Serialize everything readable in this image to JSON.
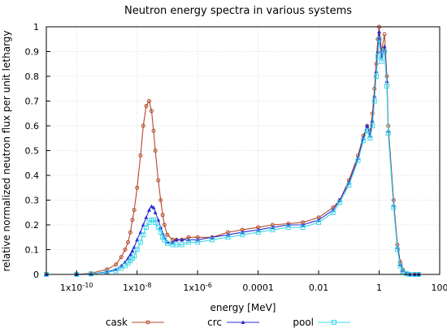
{
  "chart_data": {
    "type": "line",
    "title": "Neutron energy spectra in various systems",
    "xlabel": "energy [MeV]",
    "ylabel": "relative normalized neutron flux per unit lethargy",
    "xscale": "log",
    "xlim": [
      1e-11,
      100
    ],
    "ylim": [
      0,
      1
    ],
    "grid": true,
    "legend_position": "bottom-center",
    "x_ticks": [
      {
        "value": 1e-10,
        "label": "1x10-10"
      },
      {
        "value": 1e-08,
        "label": "1x10-8"
      },
      {
        "value": 1e-06,
        "label": "1x10-6"
      },
      {
        "value": 0.0001,
        "label": "0.0001"
      },
      {
        "value": 0.01,
        "label": "0.01"
      },
      {
        "value": 1,
        "label": "1"
      },
      {
        "value": 100,
        "label": "100"
      }
    ],
    "y_ticks": [
      {
        "value": 0,
        "label": "0"
      },
      {
        "value": 0.1,
        "label": "0.1"
      },
      {
        "value": 0.2,
        "label": "0.2"
      },
      {
        "value": 0.3,
        "label": "0.3"
      },
      {
        "value": 0.4,
        "label": "0.4"
      },
      {
        "value": 0.5,
        "label": "0.5"
      },
      {
        "value": 0.6,
        "label": "0.6"
      },
      {
        "value": 0.7,
        "label": "0.7"
      },
      {
        "value": 0.8,
        "label": "0.8"
      },
      {
        "value": 0.9,
        "label": "0.9"
      },
      {
        "value": 1,
        "label": "1"
      }
    ],
    "series": [
      {
        "name": "cask",
        "color": "#b5482a",
        "marker": "circle",
        "x": [
          1e-11,
          1e-10,
          3e-10,
          1e-09,
          2e-09,
          3e-09,
          4e-09,
          5e-09,
          6e-09,
          7e-09,
          8e-09,
          1e-08,
          1.3e-08,
          1.6e-08,
          2e-08,
          2.5e-08,
          3e-08,
          3.5e-08,
          4e-08,
          5e-08,
          6e-08,
          7e-08,
          8e-08,
          1e-07,
          1.5e-07,
          2e-07,
          3e-07,
          5e-07,
          1e-06,
          3e-06,
          1e-05,
          3e-05,
          0.0001,
          0.0003,
          0.001,
          0.003,
          0.01,
          0.03,
          0.05,
          0.1,
          0.2,
          0.3,
          0.4,
          0.5,
          0.6,
          0.7,
          0.8,
          0.9,
          1.0,
          1.2,
          1.5,
          1.8,
          2.0,
          3.0,
          4.0,
          5.0,
          6.0,
          8.0,
          10,
          15,
          20
        ],
        "y": [
          0,
          0,
          0.005,
          0.02,
          0.04,
          0.07,
          0.1,
          0.13,
          0.17,
          0.22,
          0.26,
          0.35,
          0.48,
          0.6,
          0.68,
          0.7,
          0.66,
          0.58,
          0.5,
          0.38,
          0.3,
          0.24,
          0.2,
          0.16,
          0.14,
          0.14,
          0.14,
          0.15,
          0.15,
          0.15,
          0.17,
          0.18,
          0.19,
          0.2,
          0.205,
          0.21,
          0.23,
          0.27,
          0.3,
          0.38,
          0.48,
          0.56,
          0.6,
          0.58,
          0.65,
          0.75,
          0.85,
          0.95,
          1.0,
          0.9,
          0.97,
          0.8,
          0.6,
          0.3,
          0.12,
          0.05,
          0.02,
          0.005,
          0,
          0,
          0
        ]
      },
      {
        "name": "crc",
        "color": "#2a2ad4",
        "marker": "triangle",
        "x": [
          1e-11,
          1e-10,
          3e-10,
          1e-09,
          2e-09,
          3e-09,
          4e-09,
          5e-09,
          6e-09,
          7e-09,
          8e-09,
          1e-08,
          1.3e-08,
          1.6e-08,
          2e-08,
          2.5e-08,
          3e-08,
          3.5e-08,
          4e-08,
          5e-08,
          6e-08,
          7e-08,
          8e-08,
          1e-07,
          1.5e-07,
          2e-07,
          3e-07,
          5e-07,
          1e-06,
          3e-06,
          1e-05,
          3e-05,
          0.0001,
          0.0003,
          0.001,
          0.003,
          0.01,
          0.03,
          0.05,
          0.1,
          0.2,
          0.3,
          0.4,
          0.5,
          0.6,
          0.7,
          0.8,
          0.9,
          1.0,
          1.2,
          1.5,
          1.8,
          2.0,
          3.0,
          4.0,
          5.0,
          6.0,
          8.0,
          10,
          15,
          20
        ],
        "y": [
          0,
          0,
          0.002,
          0.01,
          0.02,
          0.035,
          0.05,
          0.065,
          0.08,
          0.095,
          0.11,
          0.14,
          0.17,
          0.2,
          0.23,
          0.26,
          0.275,
          0.27,
          0.25,
          0.22,
          0.19,
          0.165,
          0.15,
          0.13,
          0.13,
          0.14,
          0.14,
          0.14,
          0.14,
          0.15,
          0.16,
          0.17,
          0.18,
          0.19,
          0.2,
          0.2,
          0.22,
          0.26,
          0.3,
          0.37,
          0.47,
          0.55,
          0.6,
          0.56,
          0.62,
          0.72,
          0.82,
          0.9,
          0.98,
          0.88,
          0.92,
          0.78,
          0.58,
          0.28,
          0.11,
          0.04,
          0.015,
          0.004,
          0,
          0,
          0
        ]
      },
      {
        "name": "pool",
        "color": "#3fd7e8",
        "marker": "square",
        "x": [
          1e-11,
          1e-10,
          3e-10,
          1e-09,
          2e-09,
          3e-09,
          4e-09,
          5e-09,
          6e-09,
          7e-09,
          8e-09,
          1e-08,
          1.3e-08,
          1.6e-08,
          2e-08,
          2.5e-08,
          3e-08,
          3.5e-08,
          4e-08,
          5e-08,
          6e-08,
          7e-08,
          8e-08,
          1e-07,
          1.5e-07,
          2e-07,
          3e-07,
          5e-07,
          1e-06,
          3e-06,
          1e-05,
          3e-05,
          0.0001,
          0.0003,
          0.001,
          0.003,
          0.01,
          0.03,
          0.05,
          0.1,
          0.2,
          0.3,
          0.4,
          0.5,
          0.6,
          0.7,
          0.8,
          0.9,
          1.0,
          1.2,
          1.5,
          1.8,
          2.0,
          3.0,
          4.0,
          5.0,
          6.0,
          8.0,
          10,
          15,
          20
        ],
        "y": [
          0,
          0,
          0.002,
          0.008,
          0.015,
          0.025,
          0.035,
          0.045,
          0.055,
          0.065,
          0.075,
          0.1,
          0.13,
          0.16,
          0.19,
          0.21,
          0.22,
          0.22,
          0.21,
          0.19,
          0.17,
          0.15,
          0.14,
          0.125,
          0.12,
          0.12,
          0.12,
          0.13,
          0.13,
          0.14,
          0.15,
          0.16,
          0.17,
          0.18,
          0.19,
          0.19,
          0.21,
          0.25,
          0.29,
          0.36,
          0.46,
          0.54,
          0.58,
          0.55,
          0.6,
          0.7,
          0.8,
          0.88,
          0.95,
          0.86,
          0.9,
          0.76,
          0.57,
          0.27,
          0.1,
          0.035,
          0.012,
          0.003,
          0,
          0,
          0
        ]
      }
    ]
  }
}
